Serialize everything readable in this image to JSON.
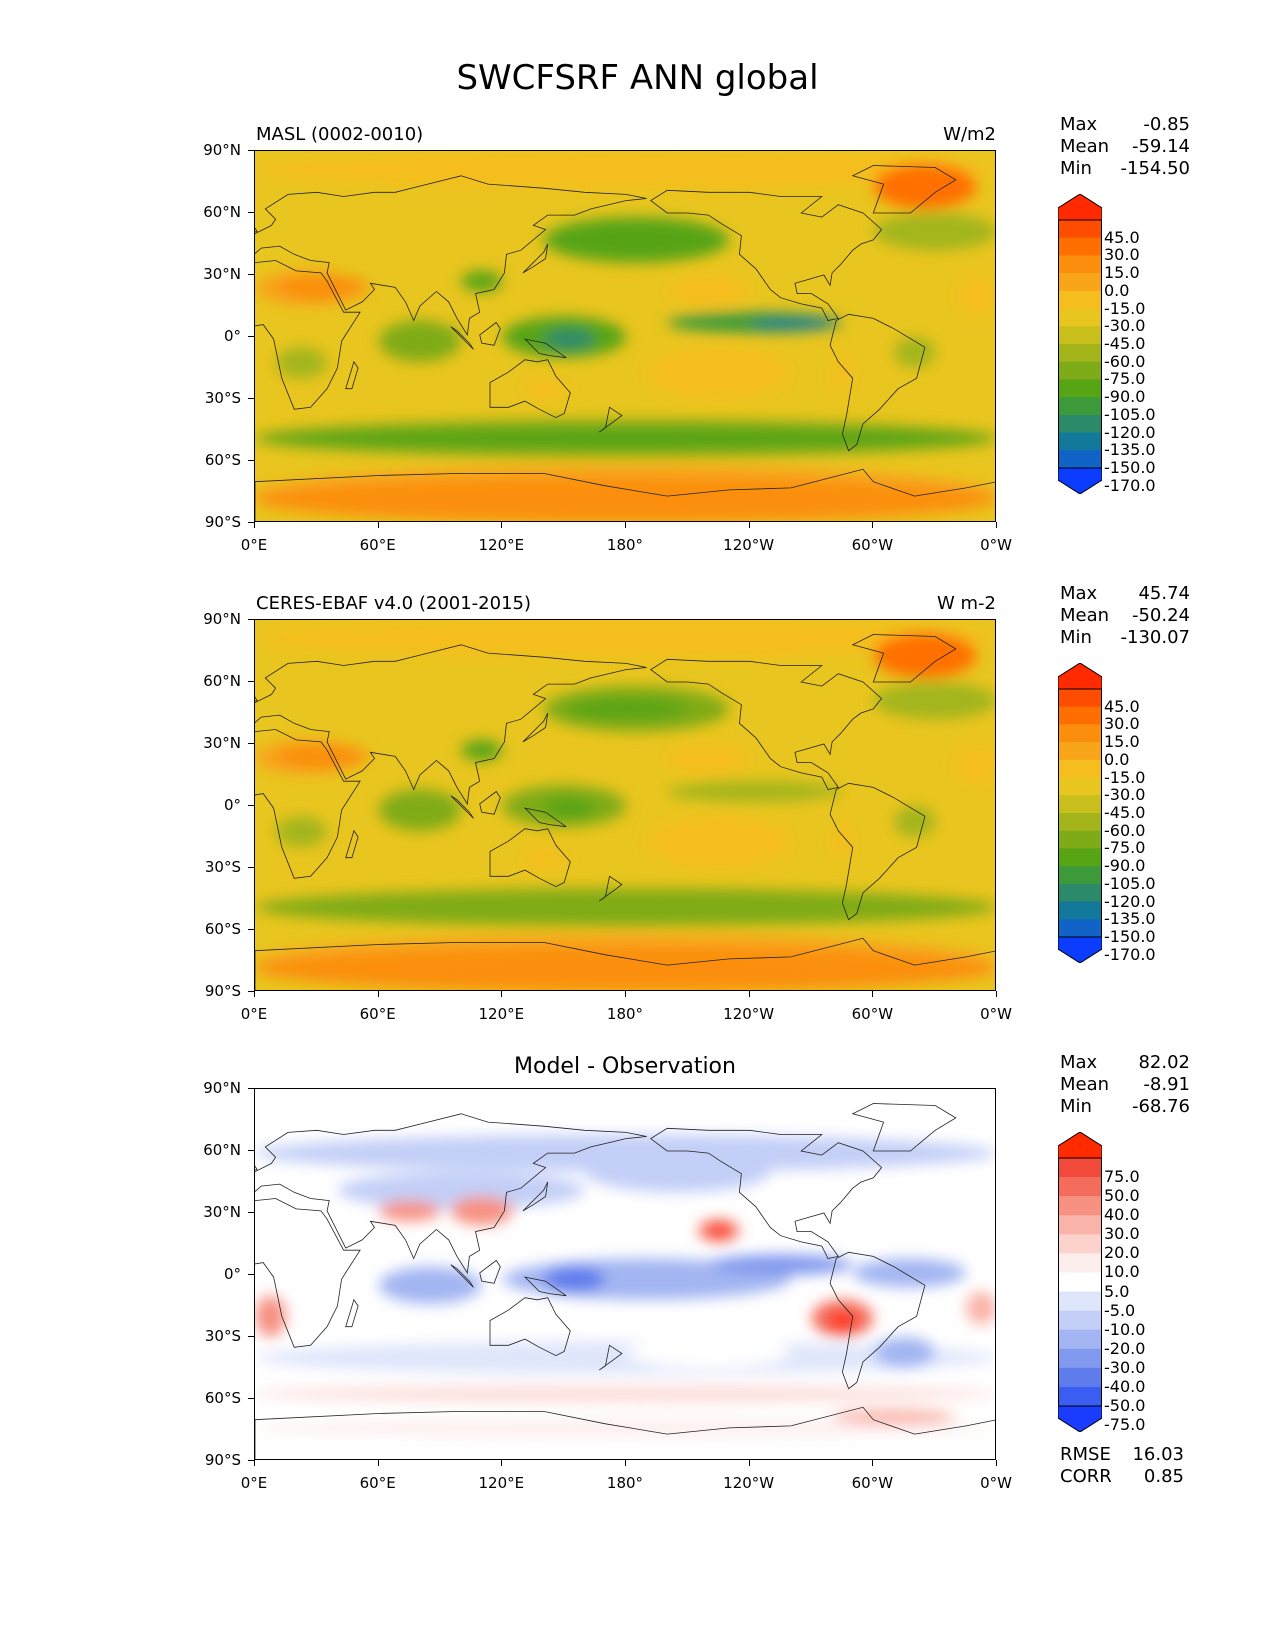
{
  "title": "SWCFSRF ANN global",
  "axis": {
    "lat_labels": [
      "90°N",
      "60°N",
      "30°N",
      "0°",
      "30°S",
      "60°S",
      "90°S"
    ],
    "lon_labels": [
      "0°E",
      "60°E",
      "120°E",
      "180°",
      "120°W",
      "60°W",
      "0°W"
    ]
  },
  "chart_data": [
    {
      "type": "heatmap",
      "title_left": "MASL (0002-0010)",
      "title_right": "W/m2",
      "stats": {
        "max_label": "Max",
        "max": "-0.85",
        "mean_label": "Mean",
        "mean": "-59.14",
        "min_label": "Min",
        "min": "-154.50"
      },
      "levels": [
        "45.0",
        "30.0",
        "15.0",
        "0.0",
        "-15.0",
        "-30.0",
        "-45.0",
        "-60.0",
        "-75.0",
        "-90.0",
        "-105.0",
        "-120.0",
        "-135.0",
        "-150.0",
        "-170.0"
      ],
      "colors": [
        "#ff2a00",
        "#ff4d00",
        "#ff6f00",
        "#fb8f0d",
        "#f8a51a",
        "#f5be1e",
        "#e9c51f",
        "#c9bf1d",
        "#a3b51b",
        "#7fab18",
        "#57a415",
        "#3c9a3a",
        "#2a8a6a",
        "#13799a",
        "#1163c8",
        "#0b3cff"
      ],
      "xlim": [
        0,
        360
      ],
      "ylim": [
        -90,
        90
      ]
    },
    {
      "type": "heatmap",
      "title_left": "CERES-EBAF v4.0 (2001-2015)",
      "title_right": "W m-2",
      "stats": {
        "max_label": "Max",
        "max": "45.74",
        "mean_label": "Mean",
        "mean": "-50.24",
        "min_label": "Min",
        "min": "-130.07"
      },
      "levels": [
        "45.0",
        "30.0",
        "15.0",
        "0.0",
        "-15.0",
        "-30.0",
        "-45.0",
        "-60.0",
        "-75.0",
        "-90.0",
        "-105.0",
        "-120.0",
        "-135.0",
        "-150.0",
        "-170.0"
      ],
      "colors": [
        "#ff2a00",
        "#ff4d00",
        "#ff6f00",
        "#fb8f0d",
        "#f8a51a",
        "#f5be1e",
        "#e9c51f",
        "#c9bf1d",
        "#a3b51b",
        "#7fab18",
        "#57a415",
        "#3c9a3a",
        "#2a8a6a",
        "#13799a",
        "#1163c8",
        "#0b3cff"
      ],
      "xlim": [
        0,
        360
      ],
      "ylim": [
        -90,
        90
      ]
    },
    {
      "type": "heatmap",
      "title_center": "Model - Observation",
      "stats": {
        "max_label": "Max",
        "max": "82.02",
        "mean_label": "Mean",
        "mean": "-8.91",
        "min_label": "Min",
        "min": "-68.76"
      },
      "levels": [
        "75.0",
        "50.0",
        "40.0",
        "30.0",
        "20.0",
        "10.0",
        "5.0",
        "-5.0",
        "-10.0",
        "-20.0",
        "-30.0",
        "-40.0",
        "-50.0",
        "-75.0"
      ],
      "colors": [
        "#ff2a00",
        "#f24a3a",
        "#f46d5c",
        "#f79182",
        "#f9b3a8",
        "#fbd3cc",
        "#fdeeee",
        "#ffffff",
        "#dfe6fb",
        "#c3cff7",
        "#a3b5f2",
        "#8199ee",
        "#5f7ced",
        "#3a5ef2",
        "#1a3cff"
      ],
      "xlim": [
        0,
        360
      ],
      "ylim": [
        -90,
        90
      ],
      "metrics": {
        "rmse_label": "RMSE",
        "rmse": "16.03",
        "corr_label": "CORR",
        "corr": "0.85"
      }
    }
  ]
}
